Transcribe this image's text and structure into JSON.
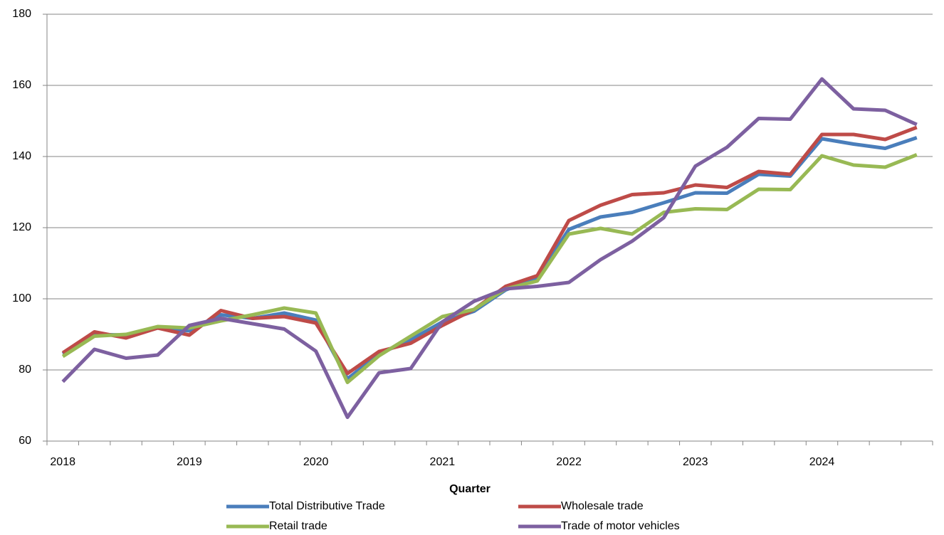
{
  "chart_data": {
    "type": "line",
    "x_label": "Quarter",
    "categories": [
      "2018",
      null,
      null,
      null,
      "2019",
      null,
      null,
      null,
      "2020",
      null,
      null,
      null,
      "2021",
      null,
      null,
      null,
      "2022",
      null,
      null,
      null,
      "2023",
      null,
      null,
      null,
      "2024",
      null,
      null,
      null
    ],
    "series": [
      {
        "name": "Total Distributive Trade",
        "color": "#4a7ebb",
        "values": [
          84.5,
          90,
          89.8,
          91.8,
          91,
          95.5,
          94.5,
          96,
          94,
          77.5,
          84.5,
          88.5,
          93.5,
          96.5,
          102.5,
          106,
          119.5,
          123,
          124.3,
          127,
          129.8,
          129.7,
          135,
          134.5,
          145,
          143.5,
          142.3,
          145.3
        ]
      },
      {
        "name": "Wholesale trade",
        "color": "#be4b48",
        "values": [
          84.8,
          90.7,
          89,
          91.8,
          89.8,
          96.7,
          94.5,
          95,
          93.2,
          79,
          85.2,
          87.5,
          92.5,
          97,
          103.5,
          106.5,
          122,
          126.3,
          129.3,
          129.8,
          132,
          131.3,
          135.8,
          135,
          146.2,
          146.2,
          144.8,
          148.2
        ]
      },
      {
        "name": "Retail trade",
        "color": "#98b954",
        "values": [
          83.8,
          89.5,
          90,
          92.2,
          91.8,
          93.8,
          95.5,
          97.4,
          96,
          76.5,
          84,
          89.5,
          95,
          97,
          102.8,
          105,
          118.2,
          119.8,
          118.2,
          124.3,
          125.3,
          125.1,
          130.8,
          130.7,
          140.2,
          137.6,
          137,
          140.5
        ]
      },
      {
        "name": "Trade of motor vehicles",
        "color": "#7d60a0",
        "values": [
          76.7,
          85.8,
          83.3,
          84.2,
          92.5,
          94.5,
          93,
          91.5,
          85.3,
          66.7,
          79.2,
          80.4,
          93.5,
          99.3,
          102.8,
          103.5,
          104.6,
          111,
          116.2,
          122.8,
          137.3,
          142.6,
          150.7,
          150.5,
          161.8,
          153.4,
          153,
          149
        ]
      }
    ],
    "ylim": [
      60,
      180
    ],
    "yticks": [
      60,
      80,
      100,
      120,
      140,
      160,
      180
    ],
    "grid": true
  }
}
